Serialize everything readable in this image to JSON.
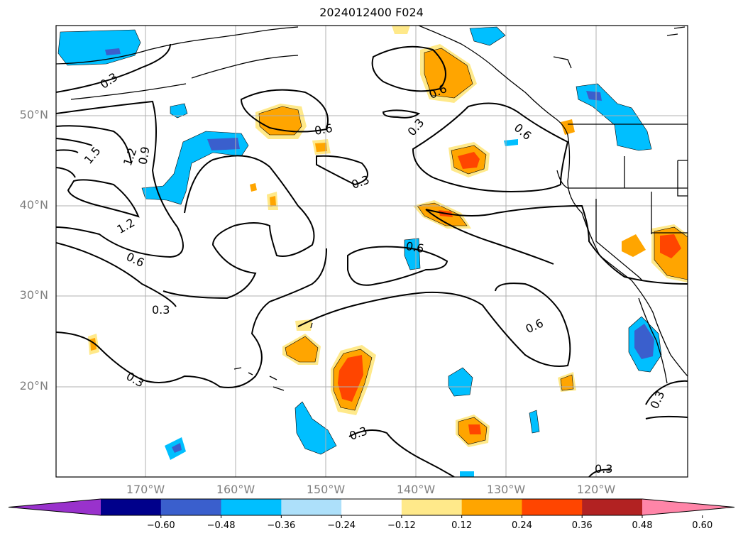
{
  "title": "2024012400 F024",
  "lat_labels": [
    "50°N",
    "40°N",
    "30°N",
    "20°N"
  ],
  "lon_labels": [
    "170°W",
    "160°W",
    "150°W",
    "140°W",
    "130°W",
    "120°W"
  ],
  "colorbar": {
    "ticks": [
      "−0.60",
      "−0.48",
      "−0.36",
      "−0.24",
      "−0.12",
      "0.12",
      "0.24",
      "0.36",
      "0.48",
      "0.60"
    ],
    "colors": [
      "#9932CC",
      "#00008B",
      "#3A5FCD",
      "#00BFFF",
      "#ADE0FA",
      "#FFFFFF",
      "#FFE98A",
      "#FFA500",
      "#FF4500",
      "#B22222",
      "#FF85A8"
    ]
  },
  "contour_labels": [
    "0.3",
    "1.5",
    "1.2",
    "0.9",
    "1.2",
    "0.6",
    "0.3",
    "0.3",
    "0.6",
    "0.3",
    "0.3",
    "0.6",
    "0.6",
    "0.6",
    "0.6",
    "0.3",
    "0.3",
    "0.3"
  ]
}
